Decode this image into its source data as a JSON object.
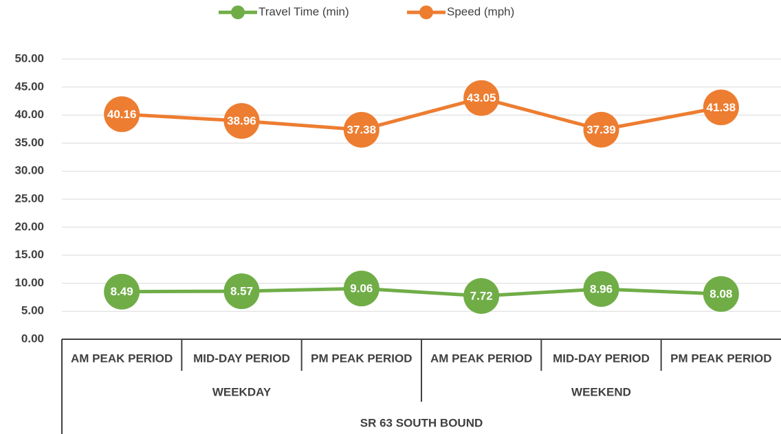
{
  "chart_data": {
    "type": "line",
    "categories": [
      "AM PEAK PERIOD",
      "MID-DAY PERIOD",
      "PM PEAK PERIOD",
      "AM PEAK PERIOD",
      "MID-DAY PERIOD",
      "PM PEAK PERIOD"
    ],
    "group_labels": [
      "WEEKDAY",
      "WEEKEND"
    ],
    "super_label": "SR 63 SOUTH BOUND",
    "series": [
      {
        "name": "Travel Time (min)",
        "color": "#70ad47",
        "values": [
          8.49,
          8.57,
          9.06,
          7.72,
          8.96,
          8.08
        ]
      },
      {
        "name": "Speed (mph)",
        "color": "#ed7d31",
        "values": [
          40.16,
          38.96,
          37.38,
          43.05,
          37.39,
          41.38
        ]
      }
    ],
    "ylim": [
      0,
      50
    ],
    "yticks": [
      {
        "value": 0,
        "label": "0.00"
      },
      {
        "value": 5,
        "label": "5.00"
      },
      {
        "value": 10,
        "label": "10.00"
      },
      {
        "value": 15,
        "label": "15.00"
      },
      {
        "value": 20,
        "label": "20.00"
      },
      {
        "value": 25,
        "label": "25.00"
      },
      {
        "value": 30,
        "label": "30.00"
      },
      {
        "value": 35,
        "label": "35.00"
      },
      {
        "value": 40,
        "label": "40.00"
      },
      {
        "value": 45,
        "label": "45.00"
      },
      {
        "value": 50,
        "label": "50.00"
      }
    ],
    "grid": true,
    "legend": "top"
  }
}
